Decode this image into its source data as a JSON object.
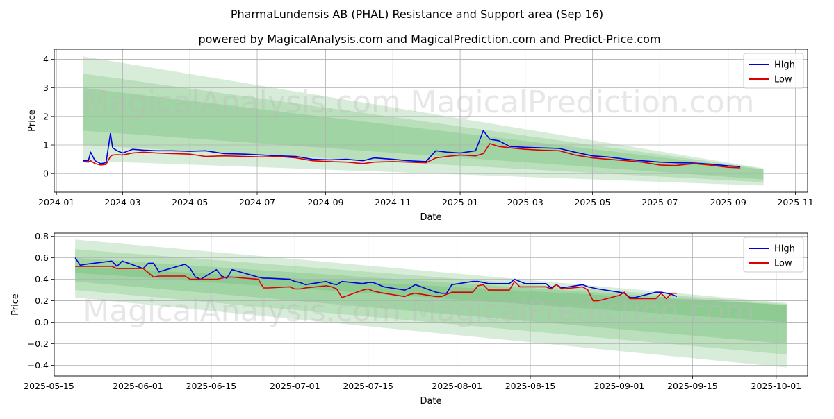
{
  "title": "PharmaLundensis AB (PHAL) Resistance and Support area (Sep 16)",
  "subtitle": "powered by MagicalAnalysis.com and MagicalPrediction.com and Predict-Price.com",
  "watermarks": [
    "MagicalAnalysis.com",
    "MagicalPrediction.com"
  ],
  "colors": {
    "high": "#0000dd",
    "low": "#dd0000",
    "band": "#4caf50",
    "grid": "#b0b0b0"
  },
  "chart_data": [
    {
      "type": "line",
      "xlabel": "Date",
      "ylabel": "Price",
      "xlim": [
        "2023-12-30",
        "2025-11-12"
      ],
      "ylim": [
        -0.65,
        4.35
      ],
      "grid": true,
      "legend": "top-right",
      "x_ticks": [
        "2024-01",
        "2024-03",
        "2024-05",
        "2024-07",
        "2024-09",
        "2024-11",
        "2025-01",
        "2025-03",
        "2025-05",
        "2025-07",
        "2025-09",
        "2025-11"
      ],
      "y_ticks": [
        0,
        1,
        2,
        3,
        4
      ],
      "bands": [
        {
          "start": "2024-01-25",
          "end": "2025-10-03",
          "start_top": 4.1,
          "start_bottom": 0.45,
          "end_top": 0.18,
          "end_bottom": -0.42
        },
        {
          "start": "2024-01-25",
          "end": "2025-10-03",
          "start_top": 3.5,
          "start_bottom": 1.0,
          "end_top": 0.16,
          "end_bottom": -0.3
        },
        {
          "start": "2024-01-25",
          "end": "2025-10-03",
          "start_top": 3.0,
          "start_bottom": 1.5,
          "end_top": 0.14,
          "end_bottom": -0.2
        }
      ],
      "series": [
        {
          "name": "High",
          "x": [
            "2024-01-25",
            "2024-01-30",
            "2024-02-01",
            "2024-02-05",
            "2024-02-10",
            "2024-02-15",
            "2024-02-19",
            "2024-02-21",
            "2024-02-25",
            "2024-03-01",
            "2024-03-10",
            "2024-03-20",
            "2024-04-01",
            "2024-04-15",
            "2024-05-01",
            "2024-05-15",
            "2024-06-01",
            "2024-06-20",
            "2024-07-05",
            "2024-07-20",
            "2024-08-05",
            "2024-08-20",
            "2024-09-05",
            "2024-09-20",
            "2024-10-05",
            "2024-10-15",
            "2024-11-01",
            "2024-11-15",
            "2024-12-01",
            "2024-12-10",
            "2024-12-20",
            "2025-01-01",
            "2025-01-15",
            "2025-01-22",
            "2025-01-28",
            "2025-02-05",
            "2025-02-15",
            "2025-03-01",
            "2025-03-15",
            "2025-04-01",
            "2025-04-15",
            "2025-05-01",
            "2025-05-15",
            "2025-06-01",
            "2025-06-15",
            "2025-07-01",
            "2025-07-15",
            "2025-08-01",
            "2025-08-15",
            "2025-09-01",
            "2025-09-12"
          ],
          "values": [
            0.45,
            0.45,
            0.75,
            0.45,
            0.35,
            0.38,
            1.4,
            0.9,
            0.8,
            0.72,
            0.85,
            0.82,
            0.8,
            0.8,
            0.78,
            0.8,
            0.7,
            0.68,
            0.65,
            0.62,
            0.6,
            0.5,
            0.48,
            0.5,
            0.45,
            0.55,
            0.5,
            0.45,
            0.42,
            0.8,
            0.75,
            0.72,
            0.8,
            1.5,
            1.2,
            1.15,
            0.95,
            0.92,
            0.9,
            0.88,
            0.75,
            0.62,
            0.58,
            0.5,
            0.45,
            0.4,
            0.38,
            0.37,
            0.33,
            0.27,
            0.24
          ]
        },
        {
          "name": "Low",
          "x": [
            "2024-01-25",
            "2024-01-30",
            "2024-02-01",
            "2024-02-05",
            "2024-02-10",
            "2024-02-15",
            "2024-02-19",
            "2024-02-21",
            "2024-02-25",
            "2024-03-01",
            "2024-03-10",
            "2024-03-20",
            "2024-04-01",
            "2024-04-15",
            "2024-05-01",
            "2024-05-15",
            "2024-06-01",
            "2024-06-20",
            "2024-07-05",
            "2024-07-20",
            "2024-08-05",
            "2024-08-20",
            "2024-09-05",
            "2024-09-20",
            "2024-10-05",
            "2024-10-15",
            "2024-11-01",
            "2024-11-15",
            "2024-12-01",
            "2024-12-10",
            "2024-12-20",
            "2025-01-01",
            "2025-01-15",
            "2025-01-22",
            "2025-01-28",
            "2025-02-05",
            "2025-02-15",
            "2025-03-01",
            "2025-03-15",
            "2025-04-01",
            "2025-04-15",
            "2025-05-01",
            "2025-05-15",
            "2025-06-01",
            "2025-06-15",
            "2025-07-01",
            "2025-07-15",
            "2025-08-01",
            "2025-08-15",
            "2025-09-01",
            "2025-09-12"
          ],
          "values": [
            0.42,
            0.4,
            0.45,
            0.35,
            0.3,
            0.32,
            0.6,
            0.65,
            0.66,
            0.65,
            0.72,
            0.75,
            0.72,
            0.7,
            0.68,
            0.6,
            0.62,
            0.6,
            0.58,
            0.6,
            0.55,
            0.45,
            0.42,
            0.4,
            0.35,
            0.4,
            0.42,
            0.4,
            0.38,
            0.55,
            0.6,
            0.65,
            0.62,
            0.7,
            1.05,
            0.95,
            0.9,
            0.85,
            0.82,
            0.8,
            0.65,
            0.55,
            0.5,
            0.45,
            0.4,
            0.3,
            0.28,
            0.35,
            0.3,
            0.22,
            0.2
          ]
        }
      ]
    },
    {
      "type": "line",
      "xlabel": "Date",
      "ylabel": "Price",
      "xlim": [
        "2025-05-16",
        "2025-10-07"
      ],
      "ylim": [
        -0.5,
        0.83
      ],
      "grid": true,
      "legend": "top-right",
      "x_ticks": [
        "2025-05-15",
        "2025-06-01",
        "2025-06-15",
        "2025-07-01",
        "2025-07-15",
        "2025-08-01",
        "2025-08-15",
        "2025-09-01",
        "2025-09-15",
        "2025-10-01"
      ],
      "y_ticks": [
        -0.4,
        -0.2,
        0.0,
        0.2,
        0.4,
        0.6,
        0.8
      ],
      "y_tick_labels": [
        "−0.4",
        "−0.2",
        "0.0",
        "0.2",
        "0.4",
        "0.6",
        "0.8"
      ],
      "bands": [
        {
          "start": "2025-05-20",
          "end": "2025-10-03",
          "start_top": 0.77,
          "start_bottom": 0.23,
          "end_top": 0.18,
          "end_bottom": -0.42
        },
        {
          "start": "2025-05-20",
          "end": "2025-10-03",
          "start_top": 0.68,
          "start_bottom": 0.3,
          "end_top": 0.17,
          "end_bottom": -0.3
        },
        {
          "start": "2025-05-20",
          "end": "2025-10-03",
          "start_top": 0.6,
          "start_bottom": 0.38,
          "end_top": 0.16,
          "end_bottom": -0.2
        },
        {
          "start": "2025-05-20",
          "end": "2025-10-03",
          "start_top": 0.52,
          "start_bottom": 0.46,
          "end_top": 0.16,
          "end_bottom": 0.0
        }
      ],
      "series": [
        {
          "name": "High",
          "x": [
            "2025-05-20",
            "2025-05-21",
            "2025-05-22",
            "2025-05-27",
            "2025-05-28",
            "2025-05-29",
            "2025-06-02",
            "2025-06-03",
            "2025-06-04",
            "2025-06-05",
            "2025-06-10",
            "2025-06-11",
            "2025-06-12",
            "2025-06-13",
            "2025-06-16",
            "2025-06-17",
            "2025-06-18",
            "2025-06-19",
            "2025-06-24",
            "2025-06-25",
            "2025-06-26",
            "2025-06-30",
            "2025-07-01",
            "2025-07-02",
            "2025-07-03",
            "2025-07-07",
            "2025-07-08",
            "2025-07-09",
            "2025-07-10",
            "2025-07-14",
            "2025-07-15",
            "2025-07-16",
            "2025-07-17",
            "2025-07-18",
            "2025-07-22",
            "2025-07-23",
            "2025-07-24",
            "2025-07-28",
            "2025-07-29",
            "2025-07-30",
            "2025-07-31",
            "2025-08-04",
            "2025-08-05",
            "2025-08-06",
            "2025-08-07",
            "2025-08-11",
            "2025-08-12",
            "2025-08-13",
            "2025-08-14",
            "2025-08-18",
            "2025-08-19",
            "2025-08-20",
            "2025-08-21",
            "2025-08-25",
            "2025-08-26",
            "2025-08-27",
            "2025-08-28",
            "2025-09-01",
            "2025-09-02",
            "2025-09-03",
            "2025-09-04",
            "2025-09-08",
            "2025-09-09",
            "2025-09-10",
            "2025-09-11",
            "2025-09-12"
          ],
          "values": [
            0.6,
            0.53,
            0.54,
            0.57,
            0.52,
            0.57,
            0.5,
            0.55,
            0.55,
            0.47,
            0.54,
            0.5,
            0.42,
            0.4,
            0.49,
            0.43,
            0.41,
            0.49,
            0.42,
            0.41,
            0.41,
            0.4,
            0.38,
            0.37,
            0.35,
            0.38,
            0.36,
            0.35,
            0.38,
            0.36,
            0.37,
            0.37,
            0.35,
            0.33,
            0.3,
            0.32,
            0.35,
            0.28,
            0.27,
            0.27,
            0.35,
            0.38,
            0.38,
            0.37,
            0.36,
            0.36,
            0.4,
            0.38,
            0.36,
            0.36,
            0.32,
            0.35,
            0.32,
            0.35,
            0.33,
            0.32,
            0.31,
            0.28,
            0.27,
            0.23,
            0.23,
            0.28,
            0.28,
            0.27,
            0.26,
            0.24
          ]
        },
        {
          "name": "Low",
          "x": [
            "2025-05-20",
            "2025-05-21",
            "2025-05-22",
            "2025-05-27",
            "2025-05-28",
            "2025-05-29",
            "2025-06-02",
            "2025-06-03",
            "2025-06-04",
            "2025-06-05",
            "2025-06-10",
            "2025-06-11",
            "2025-06-12",
            "2025-06-13",
            "2025-06-16",
            "2025-06-17",
            "2025-06-18",
            "2025-06-19",
            "2025-06-24",
            "2025-06-25",
            "2025-06-26",
            "2025-06-30",
            "2025-07-01",
            "2025-07-02",
            "2025-07-03",
            "2025-07-07",
            "2025-07-08",
            "2025-07-09",
            "2025-07-10",
            "2025-07-14",
            "2025-07-15",
            "2025-07-16",
            "2025-07-17",
            "2025-07-18",
            "2025-07-22",
            "2025-07-23",
            "2025-07-24",
            "2025-07-28",
            "2025-07-29",
            "2025-07-30",
            "2025-07-31",
            "2025-08-04",
            "2025-08-05",
            "2025-08-06",
            "2025-08-07",
            "2025-08-11",
            "2025-08-12",
            "2025-08-13",
            "2025-08-14",
            "2025-08-18",
            "2025-08-19",
            "2025-08-20",
            "2025-08-21",
            "2025-08-25",
            "2025-08-26",
            "2025-08-27",
            "2025-08-28",
            "2025-09-01",
            "2025-09-02",
            "2025-09-03",
            "2025-09-04",
            "2025-09-08",
            "2025-09-09",
            "2025-09-10",
            "2025-09-11",
            "2025-09-12"
          ],
          "values": [
            0.52,
            0.52,
            0.52,
            0.52,
            0.5,
            0.5,
            0.5,
            0.46,
            0.42,
            0.43,
            0.43,
            0.4,
            0.4,
            0.4,
            0.4,
            0.41,
            0.42,
            0.42,
            0.4,
            0.32,
            0.32,
            0.33,
            0.31,
            0.31,
            0.32,
            0.34,
            0.33,
            0.31,
            0.23,
            0.3,
            0.31,
            0.29,
            0.28,
            0.27,
            0.24,
            0.26,
            0.27,
            0.24,
            0.24,
            0.26,
            0.28,
            0.28,
            0.34,
            0.35,
            0.3,
            0.3,
            0.38,
            0.33,
            0.33,
            0.33,
            0.31,
            0.35,
            0.31,
            0.33,
            0.3,
            0.2,
            0.2,
            0.25,
            0.28,
            0.22,
            0.22,
            0.22,
            0.27,
            0.22,
            0.27,
            0.27
          ]
        }
      ]
    }
  ]
}
